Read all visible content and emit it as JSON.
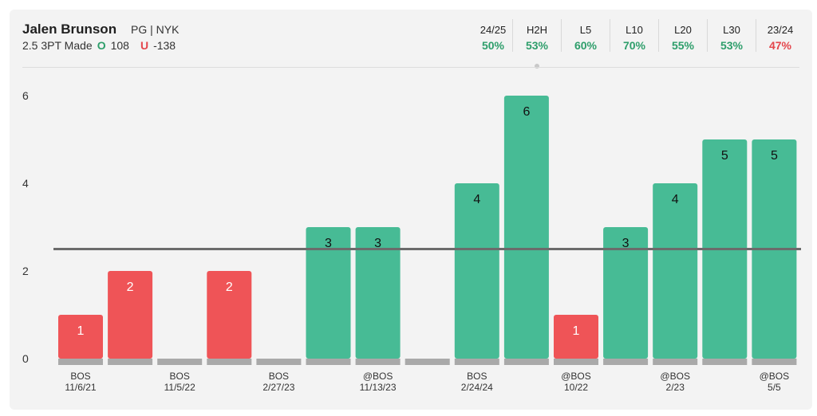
{
  "header": {
    "player_name": "Jalen Brunson",
    "player_meta": "PG | NYK",
    "prop": "2.5 3PT Made",
    "over_icon": "O",
    "over_odds": "108",
    "under_icon": "U",
    "under_odds": "-138"
  },
  "stats": [
    {
      "label": "24/25",
      "value": "50%",
      "status": "pos"
    },
    {
      "label": "H2H",
      "value": "53%",
      "status": "pos",
      "selected": true
    },
    {
      "label": "L5",
      "value": "60%",
      "status": "pos"
    },
    {
      "label": "L10",
      "value": "70%",
      "status": "pos"
    },
    {
      "label": "L20",
      "value": "55%",
      "status": "pos"
    },
    {
      "label": "L30",
      "value": "53%",
      "status": "pos"
    },
    {
      "label": "23/24",
      "value": "47%",
      "status": "neg"
    }
  ],
  "colors": {
    "over": "#47bb95",
    "under": "#ef5457",
    "base": "#a9a9a9",
    "line": "#6b6b6b"
  },
  "chart_data": {
    "type": "bar",
    "ylim": [
      0,
      6
    ],
    "yticks": [
      0,
      2,
      4,
      6
    ],
    "threshold": 2.5,
    "bars": [
      {
        "value": 1,
        "top": "BOS",
        "bottom": "11/6/21"
      },
      {
        "value": 2,
        "top": "",
        "bottom": ""
      },
      {
        "value": 0,
        "top": "BOS",
        "bottom": "11/5/22"
      },
      {
        "value": 2,
        "top": "",
        "bottom": ""
      },
      {
        "value": 0,
        "top": "BOS",
        "bottom": "2/27/23"
      },
      {
        "value": 3,
        "top": "",
        "bottom": ""
      },
      {
        "value": 3,
        "top": "@BOS",
        "bottom": "11/13/23"
      },
      {
        "value": 0,
        "top": "",
        "bottom": ""
      },
      {
        "value": 4,
        "top": "BOS",
        "bottom": "2/24/24"
      },
      {
        "value": 6,
        "top": "",
        "bottom": ""
      },
      {
        "value": 1,
        "top": "@BOS",
        "bottom": "10/22"
      },
      {
        "value": 3,
        "top": "",
        "bottom": ""
      },
      {
        "value": 4,
        "top": "@BOS",
        "bottom": "2/23"
      },
      {
        "value": 5,
        "top": "",
        "bottom": ""
      },
      {
        "value": 5,
        "top": "@BOS",
        "bottom": "5/5"
      }
    ]
  }
}
